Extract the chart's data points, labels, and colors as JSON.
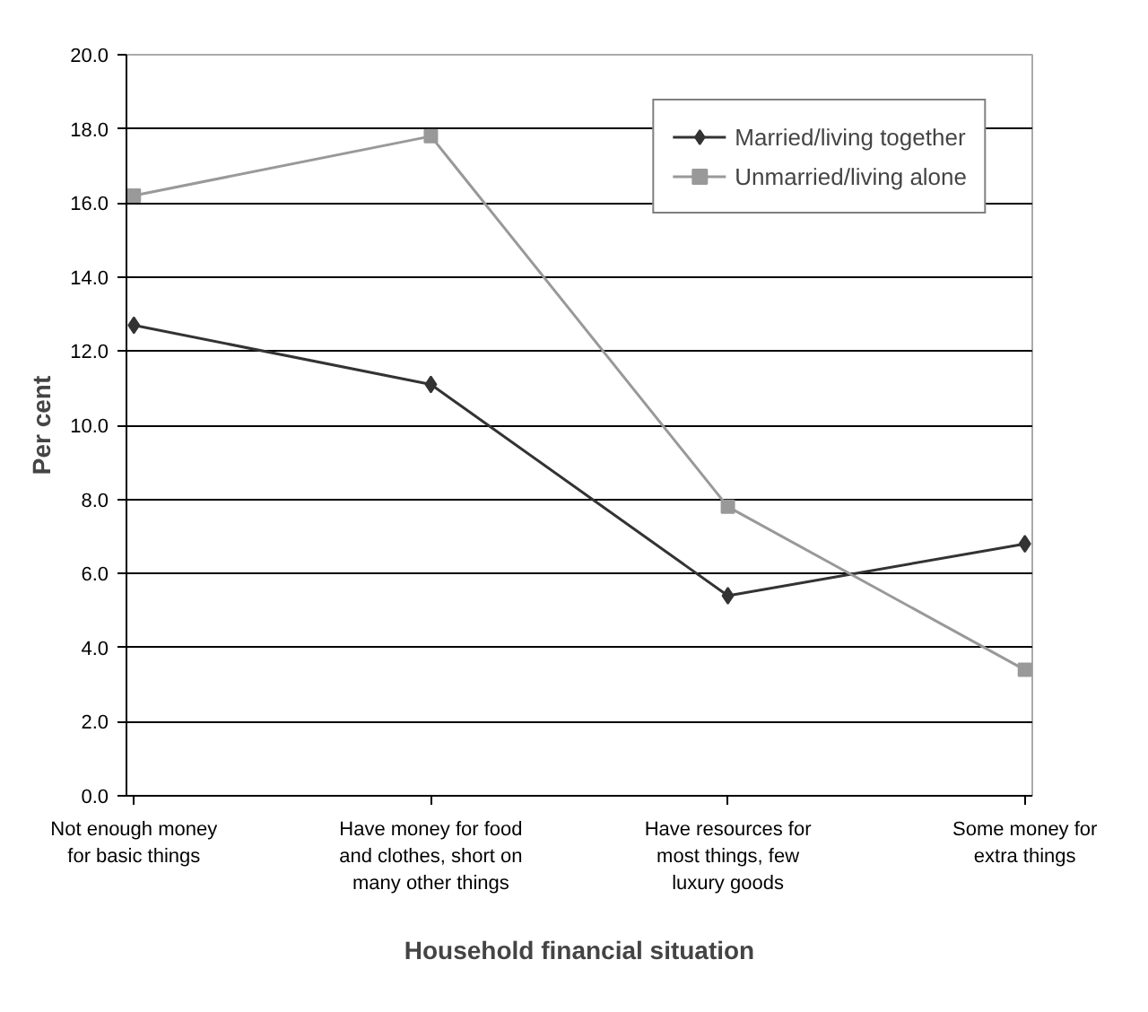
{
  "chart_data": {
    "type": "line",
    "xlabel": "Household financial situation",
    "ylabel": "Per cent",
    "categories": [
      "Not enough money\nfor basic things",
      "Have money for food\nand clothes, short on\nmany other things",
      "Have resources for\nmost things, few\nluxury goods",
      "Some money for\nextra things"
    ],
    "series": [
      {
        "name": "Married/living together",
        "color": "#333333",
        "marker": "diamond",
        "values": [
          12.7,
          11.1,
          5.4,
          6.8
        ]
      },
      {
        "name": "Unmarried/living alone",
        "color": "#999999",
        "marker": "square",
        "values": [
          16.2,
          17.8,
          7.8,
          3.4
        ]
      }
    ],
    "ylim": [
      0,
      20
    ],
    "yticks": [
      {
        "value": 0,
        "label": "0.0"
      },
      {
        "value": 2,
        "label": "2.0"
      },
      {
        "value": 4,
        "label": "4.0"
      },
      {
        "value": 6,
        "label": "6.0"
      },
      {
        "value": 8,
        "label": "8.0"
      },
      {
        "value": 10,
        "label": "10.0"
      },
      {
        "value": 12,
        "label": "12.0"
      },
      {
        "value": 14,
        "label": "14.0"
      },
      {
        "value": 16,
        "label": "16.0"
      },
      {
        "value": 18,
        "label": "18.0"
      },
      {
        "value": 20,
        "label": "20.0"
      }
    ],
    "grid": "y",
    "legend": "top right"
  }
}
